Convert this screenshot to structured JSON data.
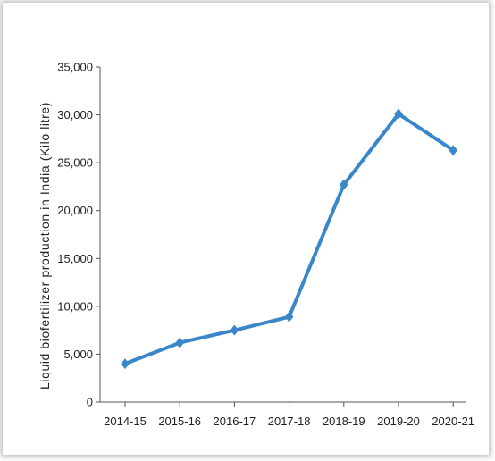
{
  "chart_data": {
    "type": "line",
    "categories": [
      "2014-15",
      "2015-16",
      "2016-17",
      "2017-18",
      "2018-19",
      "2019-20",
      "2020-21"
    ],
    "series": [
      {
        "values": [
          4000,
          6200,
          7500,
          8900,
          22700,
          30100,
          26300
        ]
      }
    ],
    "title": "",
    "xlabel": "",
    "ylabel": "Liquid biofertilizer production in India (Kilo litre)",
    "ylim": [
      0,
      35000
    ],
    "yticks": [
      0,
      5000,
      10000,
      15000,
      20000,
      25000,
      30000,
      35000
    ],
    "ytick_labels": [
      "0",
      "5,000",
      "10,000",
      "15,000",
      "20,000",
      "25,000",
      "30,000",
      "35,000"
    ],
    "grid": false,
    "line_color": "#3a86c8"
  }
}
